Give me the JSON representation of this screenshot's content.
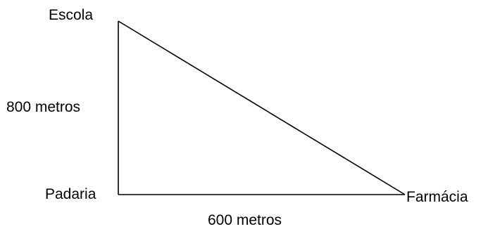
{
  "vertices": {
    "escola": "Escola",
    "padaria": "Padaria",
    "farmacia": "Farmácia"
  },
  "sides": {
    "vertical_label": "800 metros",
    "horizontal_label": "600 metros"
  },
  "colors": {
    "line": "#000000",
    "text": "#000000",
    "background": "#ffffff"
  }
}
